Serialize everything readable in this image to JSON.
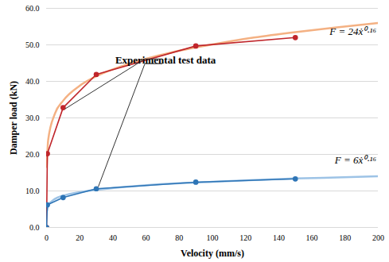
{
  "chart_data": {
    "type": "line",
    "x_label": "Velocity (mm/s)",
    "y_label": "Damper load (kN)",
    "xlim": [
      0,
      200
    ],
    "xticks": [
      0,
      20,
      40,
      60,
      80,
      100,
      120,
      140,
      160,
      180,
      200
    ],
    "ylim": [
      0,
      60
    ],
    "yticks": [
      {
        "value": 0,
        "label": "0.0"
      },
      {
        "value": 10,
        "label": "10.0"
      },
      {
        "value": 20,
        "label": "20.0"
      },
      {
        "value": 30,
        "label": "30.0"
      },
      {
        "value": 40,
        "label": "40.0"
      },
      {
        "value": 50,
        "label": "50.0"
      },
      {
        "value": 60,
        "label": "60.0"
      }
    ],
    "grid": true,
    "series": [
      {
        "name": "F = 24ẋ⁰·¹⁶",
        "color": "#f4b183",
        "marker": "none",
        "line_style": "solid",
        "x": [
          0.1,
          1,
          5,
          10,
          20,
          30,
          50,
          75,
          100,
          125,
          150,
          175,
          200
        ],
        "values": [
          16.6,
          24.0,
          31.1,
          34.7,
          38.8,
          41.4,
          44.9,
          47.9,
          50.1,
          52.0,
          53.5,
          54.8,
          56.0
        ]
      },
      {
        "name": "F = 6ẋ⁰·¹⁶",
        "color": "#9dc3e6",
        "marker": "none",
        "line_style": "solid",
        "x": [
          0.1,
          1,
          5,
          10,
          20,
          30,
          50,
          75,
          100,
          125,
          150,
          175,
          200
        ],
        "values": [
          4.2,
          6.0,
          7.8,
          8.7,
          9.7,
          10.3,
          11.2,
          12.0,
          12.5,
          13.0,
          13.4,
          13.7,
          14.0
        ]
      },
      {
        "name": "Experimental test data",
        "color": "#c0262b",
        "marker": "circle",
        "line_style": "solid",
        "x": [
          0,
          0.5,
          10,
          30,
          90,
          150
        ],
        "values": [
          0,
          20.2,
          32.8,
          41.9,
          49.7,
          52.0
        ]
      },
      {
        "name": "Experimental test data",
        "color": "#2e75b6",
        "marker": "circle",
        "line_style": "solid",
        "x": [
          0,
          0.5,
          10,
          30,
          90,
          150
        ],
        "values": [
          0,
          6.2,
          8.2,
          10.6,
          12.4,
          13.3
        ]
      }
    ]
  }
}
